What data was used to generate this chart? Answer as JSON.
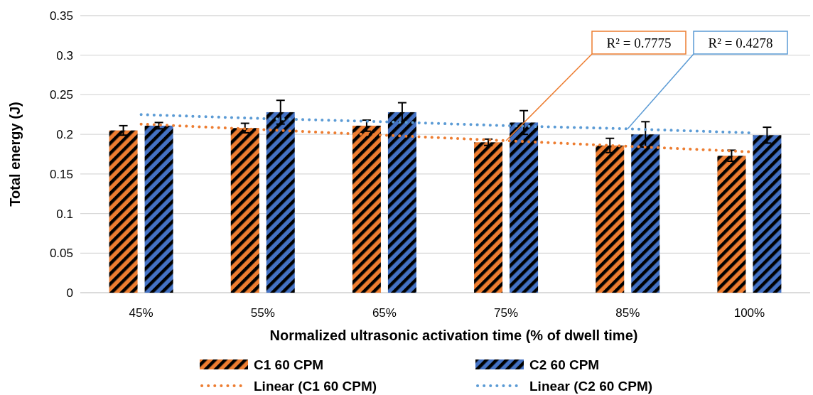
{
  "chart_data": {
    "type": "bar",
    "xlabel": "Normalized ultrasonic activation time (% of dwell time)",
    "ylabel": "Total energy (J)",
    "categories": [
      "45%",
      "55%",
      "65%",
      "75%",
      "85%",
      "100%"
    ],
    "ylim": [
      0,
      0.35
    ],
    "yticks": [
      0,
      0.05,
      0.1,
      0.15,
      0.2,
      0.25,
      0.3,
      0.35
    ],
    "grid": "y",
    "legend": "bottom",
    "series": [
      {
        "name": "C1 60 CPM",
        "color": "#ed7d31",
        "values": [
          0.205,
          0.208,
          0.211,
          0.19,
          0.186,
          0.173
        ],
        "errors": [
          0.006,
          0.006,
          0.007,
          0.004,
          0.009,
          0.007
        ]
      },
      {
        "name": "C2 60 CPM",
        "color": "#4472c4",
        "values": [
          0.211,
          0.228,
          0.228,
          0.215,
          0.2,
          0.199
        ],
        "errors": [
          0.004,
          0.015,
          0.012,
          0.015,
          0.016,
          0.01
        ]
      },
      {
        "name": "Linear (C1 60 CPM)",
        "type": "line",
        "line_style": "dotted",
        "color": "#ed7d31",
        "values": [
          0.213,
          0.206,
          0.199,
          0.192,
          0.185,
          0.178
        ]
      },
      {
        "name": "Linear (C2 60 CPM)",
        "type": "line",
        "line_style": "dotted",
        "color": "#5b9bd5",
        "values": [
          0.225,
          0.22,
          0.216,
          0.211,
          0.207,
          0.202
        ]
      }
    ],
    "annotations": [
      {
        "text": "R² = 0.7775",
        "x": "75%",
        "y": 0.192
      },
      {
        "text": "R² = 0.4278",
        "x": "85%",
        "y": 0.207
      }
    ]
  }
}
